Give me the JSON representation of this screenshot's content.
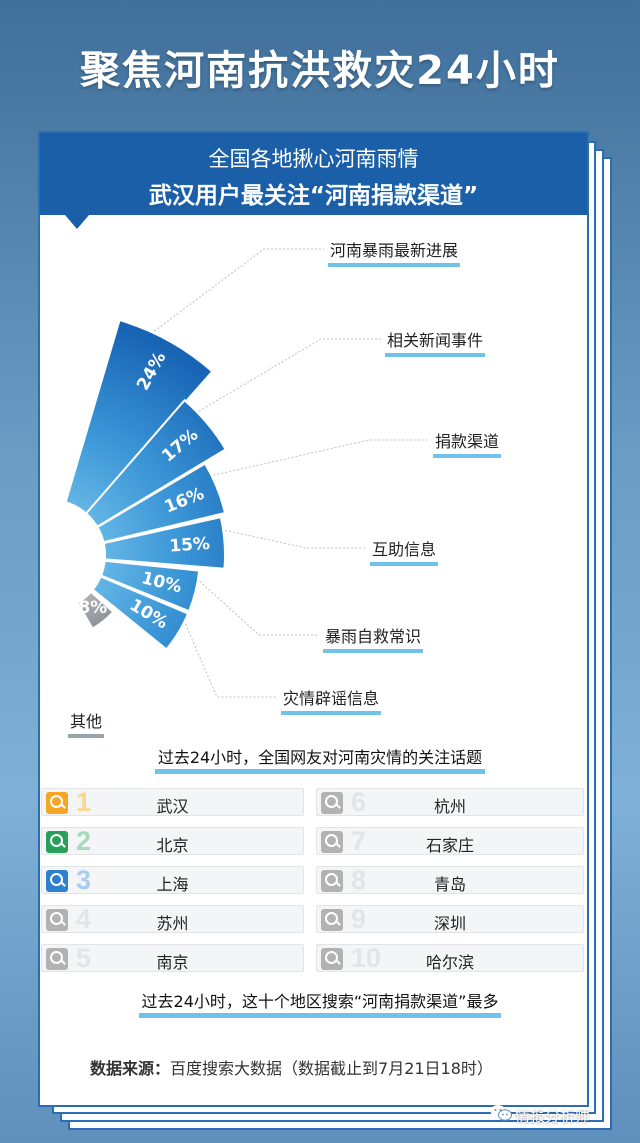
{
  "title": "聚焦河南抗洪救灾24小时",
  "header": {
    "line1": "全国各地揪心河南雨情",
    "line2": "武汉用户最关注“河南捐款渠道”"
  },
  "chart_data": {
    "type": "pie",
    "subtitle": "过去24小时，全国网友对河南灾情的关注话题",
    "slices": [
      {
        "category": "河南暴雨最新进展",
        "value": 24,
        "label": "24%"
      },
      {
        "category": "相关新闻事件",
        "value": 17,
        "label": "17%"
      },
      {
        "category": "捐款渠道",
        "value": 16,
        "label": "16%"
      },
      {
        "category": "互助信息",
        "value": 15,
        "label": "15%"
      },
      {
        "category": "暴雨自救常识",
        "value": 10,
        "label": "10%"
      },
      {
        "category": "灾情辟谣信息",
        "value": 10,
        "label": "10%"
      },
      {
        "category": "其他",
        "value": 8,
        "label": "8%"
      }
    ],
    "colors": {
      "main": "#1a6fc0",
      "light": "#6ec6ea",
      "other": "#8a8f94"
    }
  },
  "ranking": {
    "caption": "过去24小时，这十个地区搜索“河南捐款渠道”最多",
    "items": [
      {
        "rank": "1",
        "city": "武汉",
        "icon_color": "#f5a623",
        "num_color": "#f8d98e"
      },
      {
        "rank": "2",
        "city": "北京",
        "icon_color": "#27a05a",
        "num_color": "#a6dbb9"
      },
      {
        "rank": "3",
        "city": "上海",
        "icon_color": "#2f7fd0",
        "num_color": "#a8cdef"
      },
      {
        "rank": "4",
        "city": "苏州",
        "icon_color": "#b2b2b2",
        "num_color": "#e2e4e6"
      },
      {
        "rank": "5",
        "city": "南京",
        "icon_color": "#b2b2b2",
        "num_color": "#e2e4e6"
      },
      {
        "rank": "6",
        "city": "杭州",
        "icon_color": "#b2b2b2",
        "num_color": "#e2e4e6"
      },
      {
        "rank": "7",
        "city": "石家庄",
        "icon_color": "#b2b2b2",
        "num_color": "#e2e4e6"
      },
      {
        "rank": "8",
        "city": "青岛",
        "icon_color": "#b2b2b2",
        "num_color": "#e2e4e6"
      },
      {
        "rank": "9",
        "city": "深圳",
        "icon_color": "#b2b2b2",
        "num_color": "#e2e4e6"
      },
      {
        "rank": "10",
        "city": "哈尔滨",
        "icon_color": "#b2b2b2",
        "num_color": "#e2e4e6"
      }
    ]
  },
  "source": {
    "label": "数据来源：",
    "text": "百度搜索大数据（数据截止到7月21日18时）"
  },
  "watermark": "情报分析师"
}
